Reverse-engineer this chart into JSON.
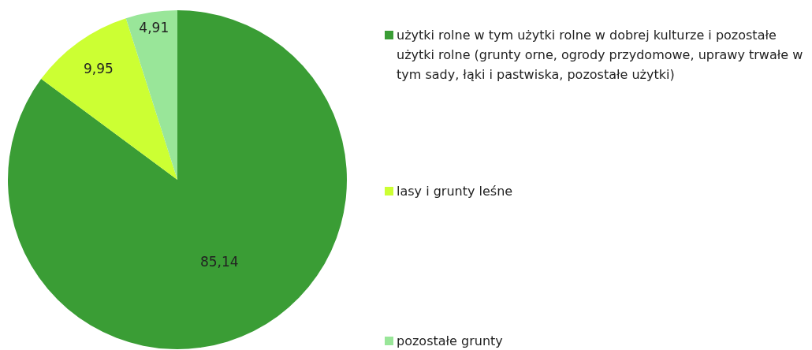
{
  "chart_data": {
    "type": "pie",
    "categories": [
      "użytki rolne w tym użytki rolne w dobrej kulturze i pozostałe użytki rolne (grunty orne, ogrody przydomowe, uprawy trwałe w tym sady, łąki i pastwiska, pozostałe użytki)",
      "lasy i grunty leśne",
      "pozostałe grunty"
    ],
    "values": [
      85.14,
      9.95,
      4.91
    ],
    "colors": [
      "#3a9d35",
      "#ccff33",
      "#99e699"
    ],
    "value_labels": [
      "85,14",
      "9,95",
      "4,91"
    ],
    "legend": "right"
  }
}
